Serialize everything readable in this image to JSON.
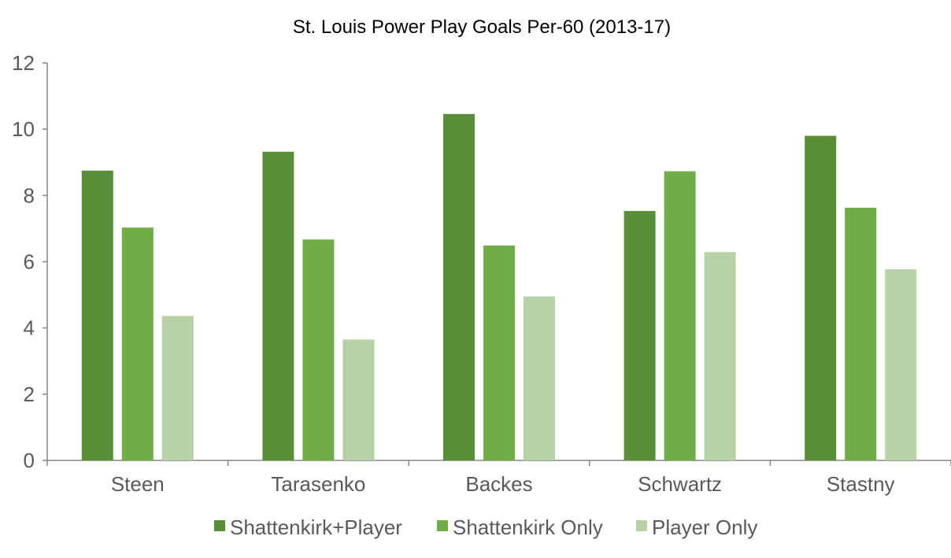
{
  "chart_data": {
    "type": "bar",
    "title": "St. Louis Power Play Goals Per-60 (2013-17)",
    "xlabel": "",
    "ylabel": "",
    "categories": [
      "Steen",
      "Tarasenko",
      "Backes",
      "Schwartz",
      "Stastny"
    ],
    "series": [
      {
        "name": "Shattenkirk+Player",
        "values": [
          8.75,
          9.32,
          10.46,
          7.53,
          9.8
        ],
        "color": "#5a8f3a"
      },
      {
        "name": "Shattenkirk Only",
        "values": [
          7.03,
          6.67,
          6.49,
          8.73,
          7.63
        ],
        "color": "#70ad47"
      },
      {
        "name": "Player Only",
        "values": [
          4.36,
          3.65,
          4.95,
          6.29,
          5.77
        ],
        "color": "#b7d1a7"
      }
    ],
    "ylim": [
      0,
      12
    ],
    "yticks": [
      "0",
      "2",
      "4",
      "6",
      "8",
      "10",
      "12"
    ],
    "grid": false,
    "legend_position": "bottom"
  }
}
